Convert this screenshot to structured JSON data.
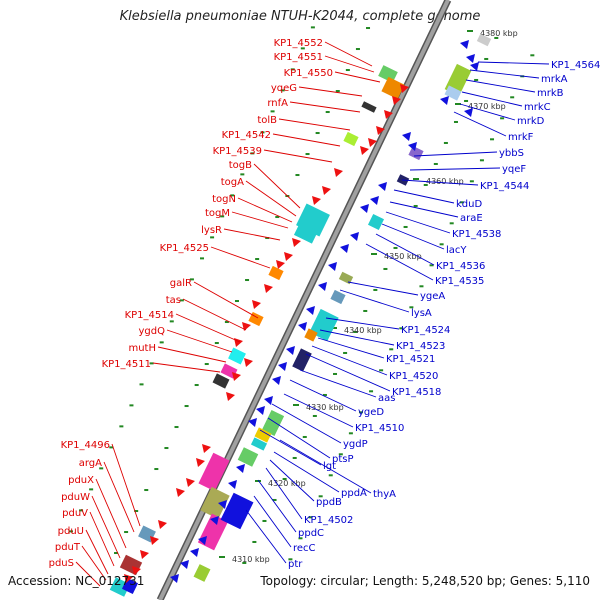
{
  "title": "Klebsiella pneumoniae NTUH-K2044, complete genome",
  "accession": "Accession: NC_012731",
  "topology": "Topology: circular; Length: 5,248,520 bp; Genes: 5,110",
  "colors": {
    "backbone": "#a0a0a0",
    "forward_label": "#dd0000",
    "reverse_label": "#0000cc",
    "tick": "#228822",
    "fwd_gene": "#ee1111",
    "rev_gene": "#1111dd"
  },
  "ruler": [
    {
      "label": "4380 kbp"
    },
    {
      "label": "4370 kbp"
    },
    {
      "label": "4360 kbp"
    },
    {
      "label": "4350 kbp"
    },
    {
      "label": "4340 kbp"
    },
    {
      "label": "4330 kbp"
    },
    {
      "label": "4320 kbp"
    },
    {
      "label": "4310 kbp"
    }
  ],
  "forward_labels": [
    "KP1_4552",
    "KP1_4551",
    "KP1_4550",
    "yqeG",
    "rnfA",
    "tolB",
    "KP1_4542",
    "KP1_4539",
    "togB",
    "togA",
    "togN",
    "togM",
    "lysR",
    "KP1_4525",
    "galR",
    "tas",
    "KP1_4514",
    "ygdQ",
    "mutH",
    "KP1_4511",
    "KP1_4496",
    "argA",
    "pduX",
    "pduW",
    "pduV",
    "pduU",
    "pduT",
    "pduS"
  ],
  "reverse_labels": [
    "KP1_4564",
    "mrkA",
    "mrkB",
    "mrkC",
    "mrkD",
    "mrkF",
    "ybbS",
    "yqeF",
    "KP1_4544",
    "kduD",
    "araE",
    "KP1_4538",
    "lacY",
    "KP1_4536",
    "KP1_4535",
    "ygeA",
    "lysA",
    "KP1_4524",
    "KP1_4523",
    "KP1_4521",
    "KP1_4520",
    "KP1_4518",
    "aas",
    "ygeD",
    "KP1_4510",
    "ygdP",
    "ptsP",
    "lgt",
    "thyA",
    "ppdA",
    "ppdB",
    "KP1_4502",
    "ppdC",
    "recC",
    "ptr"
  ]
}
